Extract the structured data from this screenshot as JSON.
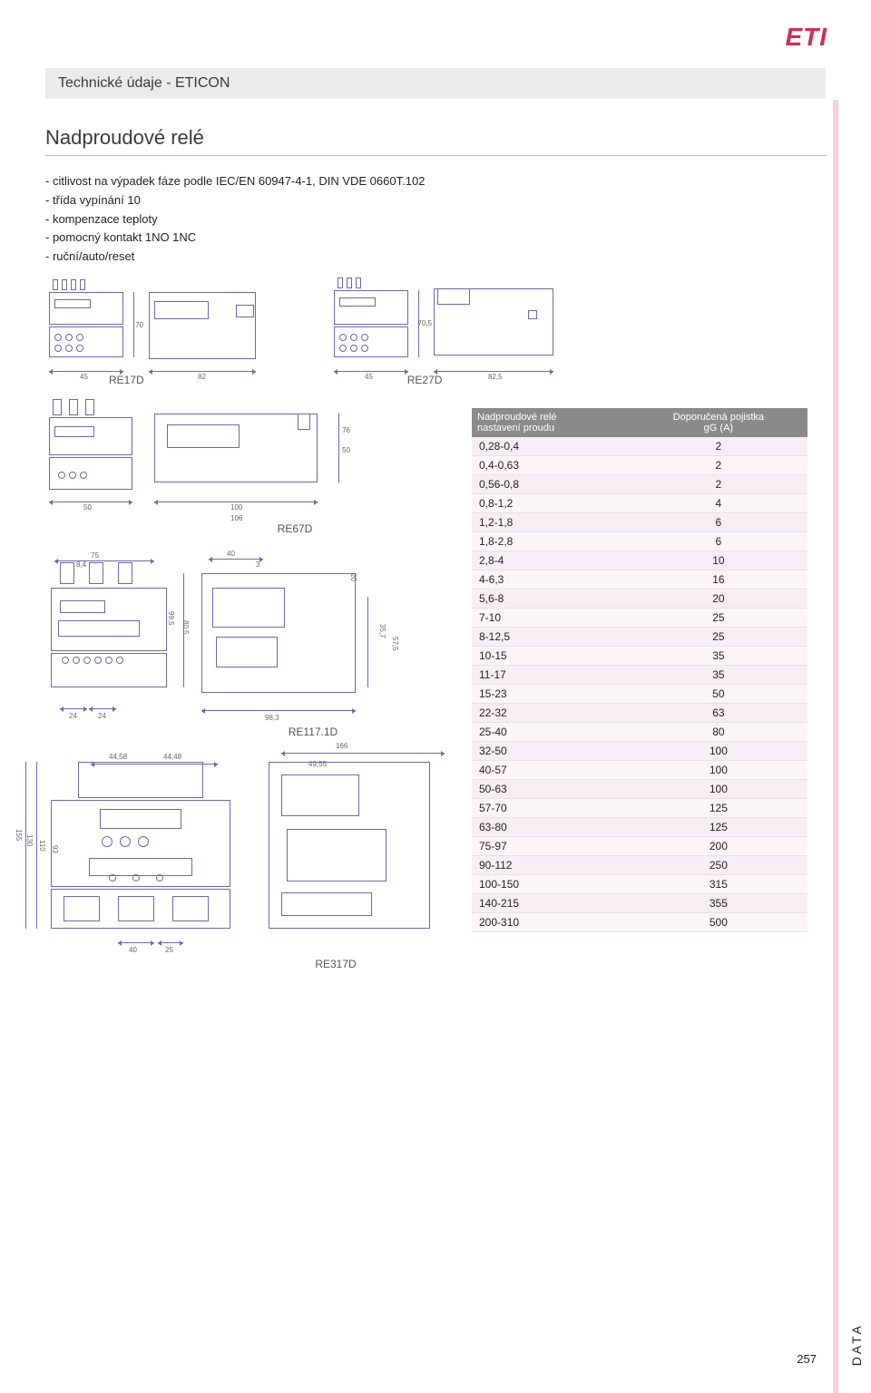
{
  "logo": "ETI",
  "header": "Technické údaje - ETICON",
  "section_title": "Nadproudové relé",
  "bullets": [
    "citlivost na výpadek fáze podle IEC/EN 60947-4-1, DIN VDE 0660T.102",
    "třída vypínání 10",
    "kompenzace teploty",
    "pomocný kontakt 1NO 1NC",
    "ruční/auto/reset"
  ],
  "models": {
    "re17d": "RE17D",
    "re27d": "RE27D",
    "re67d": "RE67D",
    "re117": "RE117.1D",
    "re317d": "RE317D"
  },
  "dims": {
    "d45": "45",
    "d82": "82",
    "d70": "70",
    "d70_5": "70,5",
    "d82_5": "82,5",
    "d50": "50",
    "d100": "100",
    "d106": "106",
    "d76": "76",
    "d75": "75",
    "d8_4": "8,4",
    "d24": "24",
    "d40": "40",
    "d3": "3",
    "d20": "20",
    "d99_5": "99,5",
    "d80_5": "80,5",
    "d35_7": "35,7",
    "d57_5": "57,5",
    "d98_3": "98,3",
    "d44_58": "44,58",
    "d44_48": "44,48",
    "d166": "166",
    "d49_55": "49,55",
    "d155": "155",
    "d130": "130",
    "d110": "110",
    "d93": "93",
    "d25": "25"
  },
  "table": {
    "head_left_1": "Nadproudové relé",
    "head_left_2": "nastavení proudu",
    "head_right_1": "Doporučená pojistka",
    "head_right_2": "gG (A)",
    "rows": [
      [
        "0,28-0,4",
        "2"
      ],
      [
        "0,4-0,63",
        "2"
      ],
      [
        "0,56-0,8",
        "2"
      ],
      [
        "0,8-1,2",
        "4"
      ],
      [
        "1,2-1,8",
        "6"
      ],
      [
        "1,8-2,8",
        "6"
      ],
      [
        "2,8-4",
        "10"
      ],
      [
        "4-6,3",
        "16"
      ],
      [
        "5,6-8",
        "20"
      ],
      [
        "7-10",
        "25"
      ],
      [
        "8-12,5",
        "25"
      ],
      [
        "10-15",
        "35"
      ],
      [
        "11-17",
        "35"
      ],
      [
        "15-23",
        "50"
      ],
      [
        "22-32",
        "63"
      ],
      [
        "25-40",
        "80"
      ],
      [
        "32-50",
        "100"
      ],
      [
        "40-57",
        "100"
      ],
      [
        "50-63",
        "100"
      ],
      [
        "57-70",
        "125"
      ],
      [
        "63-80",
        "125"
      ],
      [
        "75-97",
        "200"
      ],
      [
        "90-112",
        "250"
      ],
      [
        "100-150",
        "315"
      ],
      [
        "140-215",
        "355"
      ],
      [
        "200-310",
        "500"
      ]
    ]
  },
  "page_num": "257",
  "side": "DATA"
}
